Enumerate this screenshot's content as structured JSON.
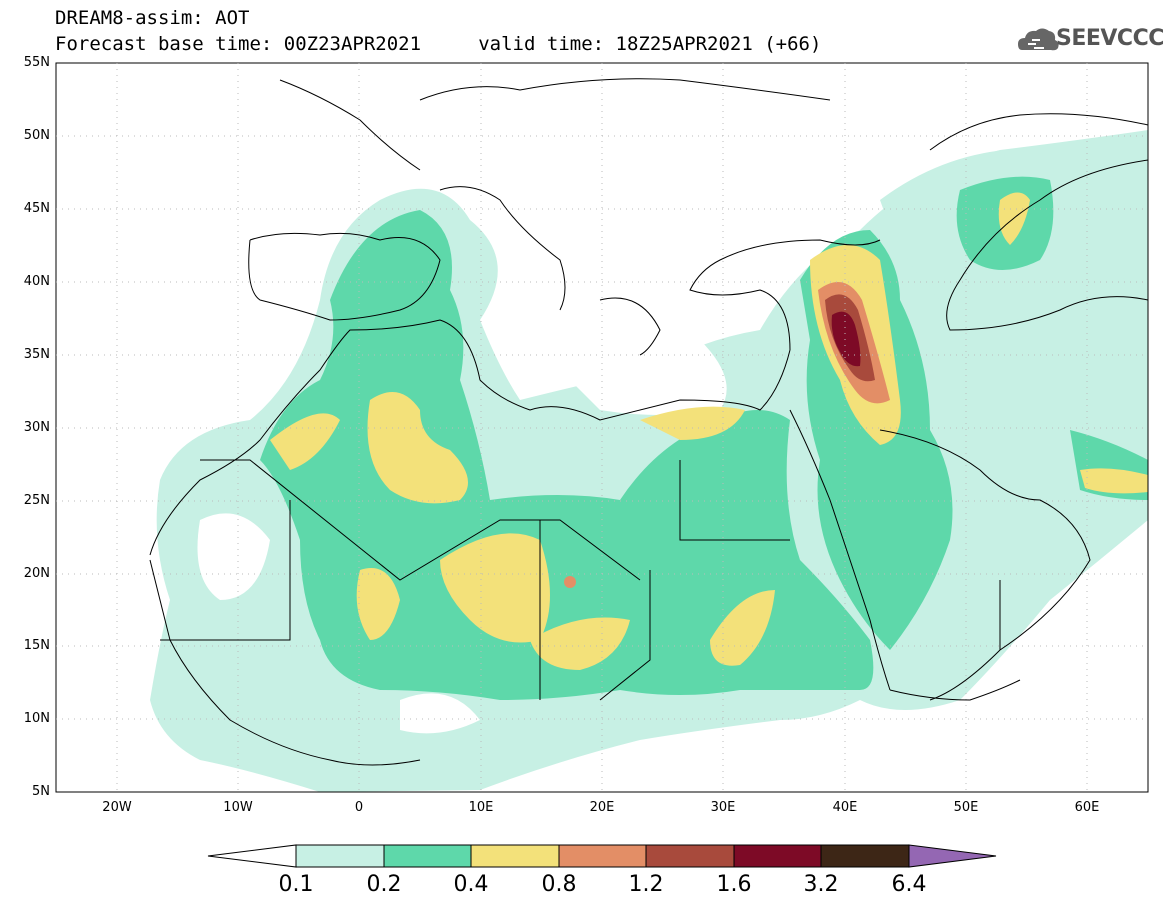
{
  "title": {
    "line1": "DREAM8-assim: AOT",
    "line2": "Forecast base time: 00Z23APR2021     valid time: 18Z25APR2021 (+66)"
  },
  "logo": {
    "text": "SEEVCCC",
    "icon": "cloud-icon"
  },
  "map": {
    "lon_range": [
      -25,
      65
    ],
    "lat_range": [
      5,
      55
    ],
    "lat_ticks": [
      "55N",
      "50N",
      "45N",
      "40N",
      "35N",
      "30N",
      "25N",
      "20N",
      "15N",
      "10N",
      "5N"
    ],
    "lon_ticks": [
      "20W",
      "10W",
      "0",
      "10E",
      "20E",
      "30E",
      "40E",
      "50E",
      "60E"
    ]
  },
  "colorbar": {
    "labels": [
      "0.1",
      "0.2",
      "0.4",
      "0.8",
      "1.2",
      "1.6",
      "3.2",
      "6.4"
    ],
    "colors": [
      "#ffffff",
      "#c7f0e4",
      "#5ed8aa",
      "#f3e17a",
      "#e38e66",
      "#a84a3c",
      "#7d0a26",
      "#3d2616",
      "#9467b3"
    ]
  }
}
